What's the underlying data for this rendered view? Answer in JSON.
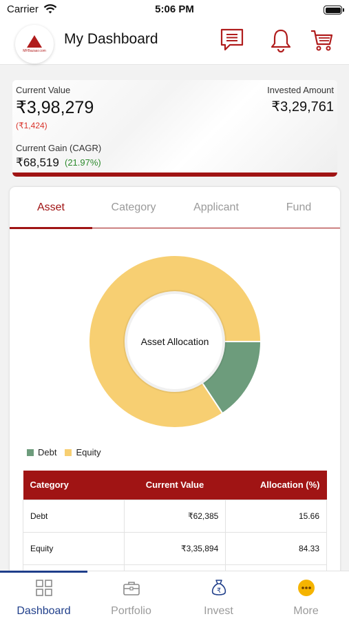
{
  "status_bar": {
    "carrier": "Carrier",
    "time": "5:06 PM"
  },
  "header": {
    "title": "My Dashboard",
    "logo_text": "MFBazaar.com",
    "icons": [
      "chat-icon",
      "bell-icon",
      "cart-icon"
    ]
  },
  "summary": {
    "current_value_label": "Current Value",
    "current_value": "₹3,98,279",
    "current_value_change": "(₹1,424)",
    "invested_label": "Invested Amount",
    "invested_value": "₹3,29,761",
    "gain_label": "Current Gain (CAGR)",
    "gain_value": "₹68,519",
    "gain_pct": "(21.97%)"
  },
  "tabs": [
    {
      "label": "Asset",
      "active": true
    },
    {
      "label": "Category",
      "active": false
    },
    {
      "label": "Applicant",
      "active": false
    },
    {
      "label": "Fund",
      "active": false
    }
  ],
  "chart_data": {
    "type": "pie",
    "title": "Asset Allocation",
    "categories": [
      "Debt",
      "Equity"
    ],
    "values": [
      15.66,
      84.33
    ],
    "colors": [
      "#6d9c7c",
      "#f7cf72"
    ],
    "legend_placement": "bottom-left"
  },
  "table": {
    "headers": [
      "Category",
      "Current Value",
      "Allocation (%)"
    ],
    "rows": [
      [
        "Debt",
        "₹62,385",
        "15.66"
      ],
      [
        "Equity",
        "₹3,35,894",
        "84.33"
      ]
    ]
  },
  "tabbar": {
    "items": [
      {
        "label": "Dashboard",
        "icon": "dashboard-grid-icon",
        "active": true
      },
      {
        "label": "Portfolio",
        "icon": "briefcase-icon",
        "active": false
      },
      {
        "label": "Invest",
        "icon": "rupee-bag-icon",
        "active": false
      },
      {
        "label": "More",
        "icon": "more-dots-icon",
        "active": false
      }
    ]
  },
  "colors": {
    "brand_red": "#a01414",
    "active_blue": "#1f3e8a",
    "gain_green": "#2c8a2c",
    "loss_red": "#d9342b"
  }
}
